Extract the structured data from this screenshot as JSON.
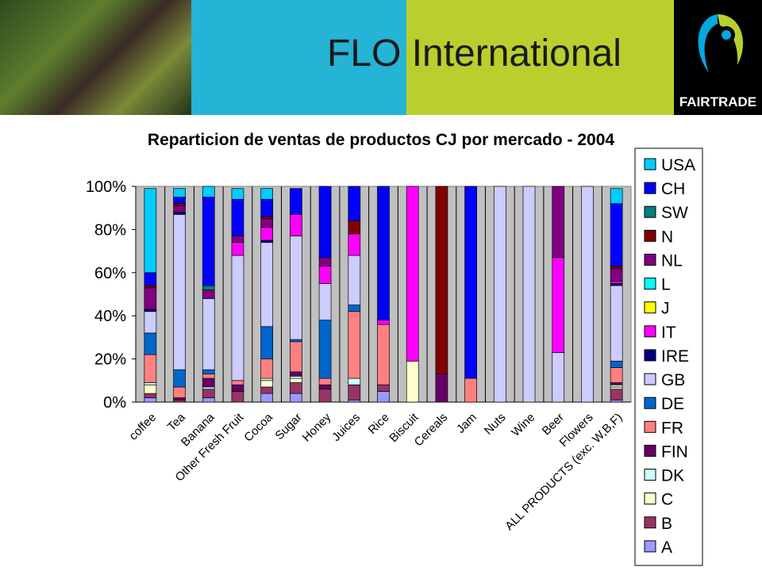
{
  "header": {
    "title": "FLO International",
    "logo_text": "FAIRTRADE",
    "photo_icon": "farmer-photo",
    "colors": {
      "blue": "#25b3d6",
      "green": "#b9cf2e",
      "black": "#000000"
    }
  },
  "chart_data": {
    "type": "bar",
    "stacked": true,
    "percent": true,
    "title": "Reparticion de ventas de productos CJ por mercado - 2004",
    "xlabel": "",
    "ylabel": "",
    "ylim": [
      0,
      100
    ],
    "yticks": [
      "0%",
      "20%",
      "40%",
      "60%",
      "80%",
      "100%"
    ],
    "grid": true,
    "plot_background": "#c0c0c0",
    "legend_position": "right",
    "categories": [
      "coffee",
      "Tea",
      "Banana",
      "Other Fresh Fruit",
      "Cocoa",
      "Sugar",
      "Honey",
      "Juices",
      "Rice",
      "Biscuit",
      "Cereals",
      "Jam",
      "Nuts",
      "Wine",
      "Beer",
      "Flowers",
      "ALL PRODUCTS (exc. W,B,F)"
    ],
    "series": [
      {
        "name": "A",
        "color": "#9999ff",
        "values": [
          2,
          0,
          2,
          0,
          4,
          4,
          0,
          1,
          5,
          0,
          0,
          0,
          0,
          0,
          0,
          0,
          1
        ]
      },
      {
        "name": "B",
        "color": "#993366",
        "values": [
          2,
          1,
          4,
          5,
          3,
          5,
          6,
          7,
          3,
          0,
          0,
          0,
          0,
          0,
          0,
          0,
          5
        ]
      },
      {
        "name": "C",
        "color": "#ffffcc",
        "values": [
          4,
          0,
          0,
          0,
          3,
          2,
          0,
          0,
          0,
          19,
          0,
          0,
          0,
          0,
          0,
          0,
          1
        ]
      },
      {
        "name": "DK",
        "color": "#ccffff",
        "values": [
          1,
          0,
          1,
          0,
          1,
          1,
          0,
          3,
          0,
          0,
          0,
          0,
          0,
          0,
          0,
          0,
          1
        ]
      },
      {
        "name": "FIN",
        "color": "#660066",
        "values": [
          0,
          1,
          4,
          3,
          0,
          2,
          2,
          0,
          0,
          0,
          13,
          0,
          0,
          0,
          0,
          0,
          1
        ]
      },
      {
        "name": "FR",
        "color": "#ff8080",
        "values": [
          13,
          5,
          2,
          2,
          9,
          14,
          3,
          31,
          28,
          0,
          0,
          11,
          0,
          0,
          0,
          0,
          7
        ]
      },
      {
        "name": "DE",
        "color": "#0066cc",
        "values": [
          10,
          8,
          2,
          0,
          15,
          1,
          27,
          3,
          0,
          0,
          0,
          0,
          0,
          0,
          0,
          0,
          3
        ]
      },
      {
        "name": "GB",
        "color": "#ccccff",
        "values": [
          10,
          72,
          33,
          58,
          39,
          48,
          17,
          23,
          0,
          0,
          0,
          0,
          100,
          100,
          23,
          100,
          35
        ]
      },
      {
        "name": "IRE",
        "color": "#000080",
        "values": [
          1,
          1,
          0,
          0,
          1,
          0,
          0,
          0,
          0,
          0,
          0,
          0,
          0,
          0,
          0,
          0,
          1
        ]
      },
      {
        "name": "IT",
        "color": "#ff00ff",
        "values": [
          0,
          0,
          0,
          6,
          6,
          10,
          8,
          10,
          2,
          81,
          0,
          0,
          0,
          0,
          44,
          0,
          1
        ]
      },
      {
        "name": "J",
        "color": "#ffff00",
        "values": [
          0,
          0,
          0,
          0,
          0,
          0,
          0,
          0,
          0,
          0,
          0,
          0,
          0,
          0,
          0,
          0,
          0
        ]
      },
      {
        "name": "L",
        "color": "#00ffff",
        "values": [
          0,
          0,
          0,
          0,
          0,
          0,
          0,
          0,
          0,
          0,
          0,
          0,
          0,
          0,
          0,
          0,
          0
        ]
      },
      {
        "name": "NL",
        "color": "#800080",
        "values": [
          10,
          3,
          4,
          3,
          4,
          0,
          4,
          0,
          0,
          0,
          0,
          0,
          0,
          0,
          33,
          0,
          6
        ]
      },
      {
        "name": "N",
        "color": "#800000",
        "values": [
          1,
          1,
          0,
          0,
          1,
          0,
          0,
          6,
          0,
          0,
          87,
          0,
          0,
          0,
          0,
          0,
          1
        ]
      },
      {
        "name": "SW",
        "color": "#008080",
        "values": [
          0,
          0,
          2,
          0,
          0,
          0,
          0,
          0,
          0,
          0,
          0,
          0,
          0,
          0,
          0,
          0,
          0
        ]
      },
      {
        "name": "CH",
        "color": "#0000ff",
        "values": [
          6,
          3,
          41,
          17,
          8,
          12,
          33,
          16,
          62,
          0,
          0,
          89,
          0,
          0,
          0,
          0,
          29
        ]
      },
      {
        "name": "USA",
        "color": "#00ccff",
        "values": [
          39,
          4,
          5,
          5,
          5,
          0,
          0,
          0,
          0,
          0,
          0,
          0,
          0,
          0,
          0,
          0,
          7
        ]
      }
    ]
  }
}
